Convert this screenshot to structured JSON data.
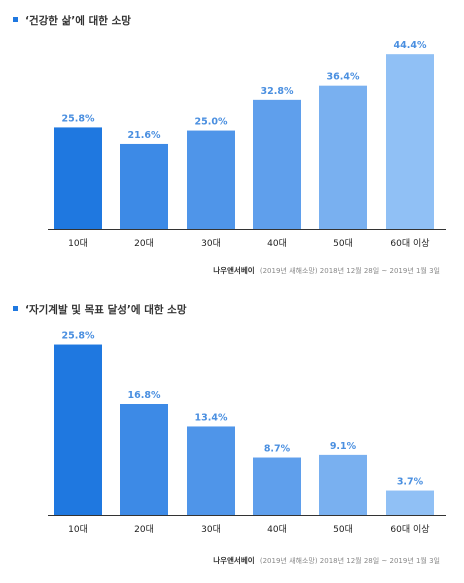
{
  "chart_data": [
    {
      "type": "bar",
      "title": "‘건강한 삶’에 대한 소망",
      "categories": [
        "10대",
        "20대",
        "30대",
        "40대",
        "50대",
        "60대 이상"
      ],
      "values": [
        25.8,
        21.6,
        25.0,
        32.8,
        36.4,
        44.4
      ],
      "value_labels": [
        "25.8%",
        "21.6%",
        "25.0%",
        "32.8%",
        "36.4%",
        "44.4%"
      ],
      "ylim": [
        0,
        48
      ],
      "grid": false,
      "source_brand": "나우앤서베이",
      "source_note": "(2019년 새해소망) 2018년 12월 28일 ~ 2019년 1월 3일",
      "colors": [
        "#1f78e0",
        "#3d8ae6",
        "#4f95e9",
        "#5f9fec",
        "#79b0f0",
        "#90c0f5"
      ],
      "label_color": "#4a8fe0",
      "bullet_color": "#1f78e0"
    },
    {
      "type": "bar",
      "title": "‘자기계발 및 목표 달성’에 대한 소망",
      "categories": [
        "10대",
        "20대",
        "30대",
        "40대",
        "50대",
        "60대 이상"
      ],
      "values": [
        25.8,
        16.8,
        13.4,
        8.7,
        9.1,
        3.7
      ],
      "value_labels": [
        "25.8%",
        "16.8%",
        "13.4%",
        "8.7%",
        "9.1%",
        "3.7%"
      ],
      "ylim": [
        0,
        28
      ],
      "grid": false,
      "source_brand": "나우앤서베이",
      "source_note": "(2019년 새해소망) 2018년 12월 28일 ~ 2019년 1월 3일",
      "colors": [
        "#1f78e0",
        "#3d8ae6",
        "#4f95e9",
        "#5f9fec",
        "#79b0f0",
        "#90c0f5"
      ],
      "label_color": "#4a8fe0",
      "bullet_color": "#1f78e0"
    }
  ]
}
